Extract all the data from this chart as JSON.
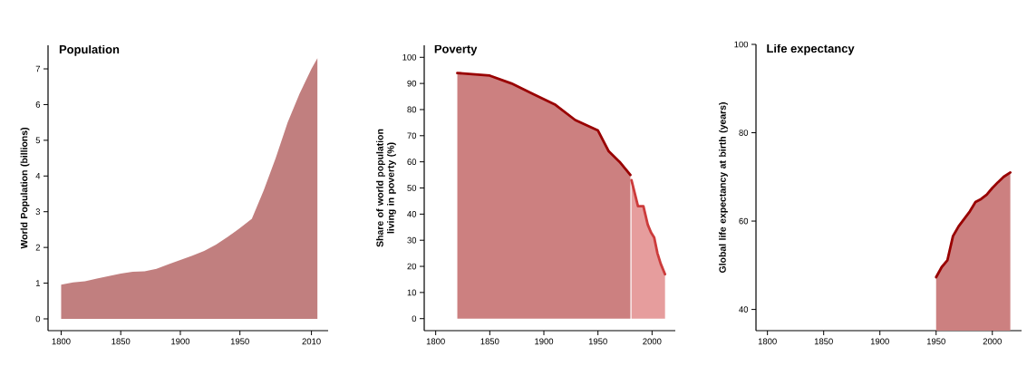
{
  "chart_data": [
    {
      "type": "area",
      "title": "Population",
      "ylabel": "World Population (billions)",
      "xlim": [
        1789,
        2024
      ],
      "ylim": [
        -0.33,
        7.66
      ],
      "xticks": [
        1800,
        1850,
        1900,
        1950,
        2010
      ],
      "yticks": [
        0,
        1,
        2,
        3,
        4,
        5,
        6,
        7
      ],
      "series": [
        {
          "color": "#c17f7f",
          "x": [
            1800,
            1810,
            1820,
            1830,
            1840,
            1850,
            1860,
            1870,
            1880,
            1890,
            1900,
            1910,
            1920,
            1930,
            1940,
            1950,
            1960,
            1970,
            1980,
            1990,
            2000,
            2010,
            2015
          ],
          "values": [
            0.96,
            1.02,
            1.05,
            1.13,
            1.2,
            1.27,
            1.32,
            1.33,
            1.4,
            1.53,
            1.65,
            1.77,
            1.9,
            2.08,
            2.3,
            2.54,
            2.8,
            3.6,
            4.5,
            5.5,
            6.3,
            7.0,
            7.3
          ]
        }
      ]
    },
    {
      "type": "area",
      "title": "Poverty",
      "ylabel": "Share of world population living in poverty (%)",
      "xlim": [
        1789.4,
        2021.5
      ],
      "ylim": [
        -4.6,
        104.6
      ],
      "xticks": [
        1800,
        1850,
        1900,
        1950,
        2000
      ],
      "yticks": [
        0,
        10,
        20,
        30,
        40,
        50,
        60,
        70,
        80,
        90,
        100
      ],
      "line_style": "solid",
      "series": [
        {
          "color": "#990000",
          "x": [
            1820,
            1850,
            1870,
            1890,
            1910,
            1929,
            1950,
            1960,
            1970,
            1980
          ],
          "values": [
            94,
            93,
            90,
            86,
            82,
            76,
            72,
            64,
            60,
            55
          ]
        },
        {
          "color": "#cc3b3b",
          "x": [
            1981,
            1987,
            1992,
            1996,
            1999,
            2002,
            2005,
            2008,
            2012
          ],
          "values": [
            53,
            43,
            43,
            36,
            33,
            31,
            25,
            21,
            17
          ]
        }
      ]
    },
    {
      "type": "area",
      "title": "Life expectancy",
      "ylabel": "Global life expectancy at birth (years)",
      "xlim": [
        1789.8,
        2026
      ],
      "ylim": [
        35.2,
        100
      ],
      "xticks": [
        1800,
        1850,
        1900,
        1950,
        2000
      ],
      "yticks": [
        40,
        60,
        80,
        100
      ],
      "line_style": "solid",
      "series": [
        {
          "color": "#990000",
          "x": [
            1950,
            1955,
            1960,
            1965,
            1970,
            1975,
            1980,
            1985,
            1990,
            1995,
            2000,
            2005,
            2010,
            2016
          ],
          "values": [
            47.3,
            49.6,
            51.1,
            56.6,
            58.8,
            60.5,
            62.2,
            64.3,
            65,
            66,
            67.5,
            68.8,
            70,
            71
          ]
        }
      ]
    }
  ]
}
